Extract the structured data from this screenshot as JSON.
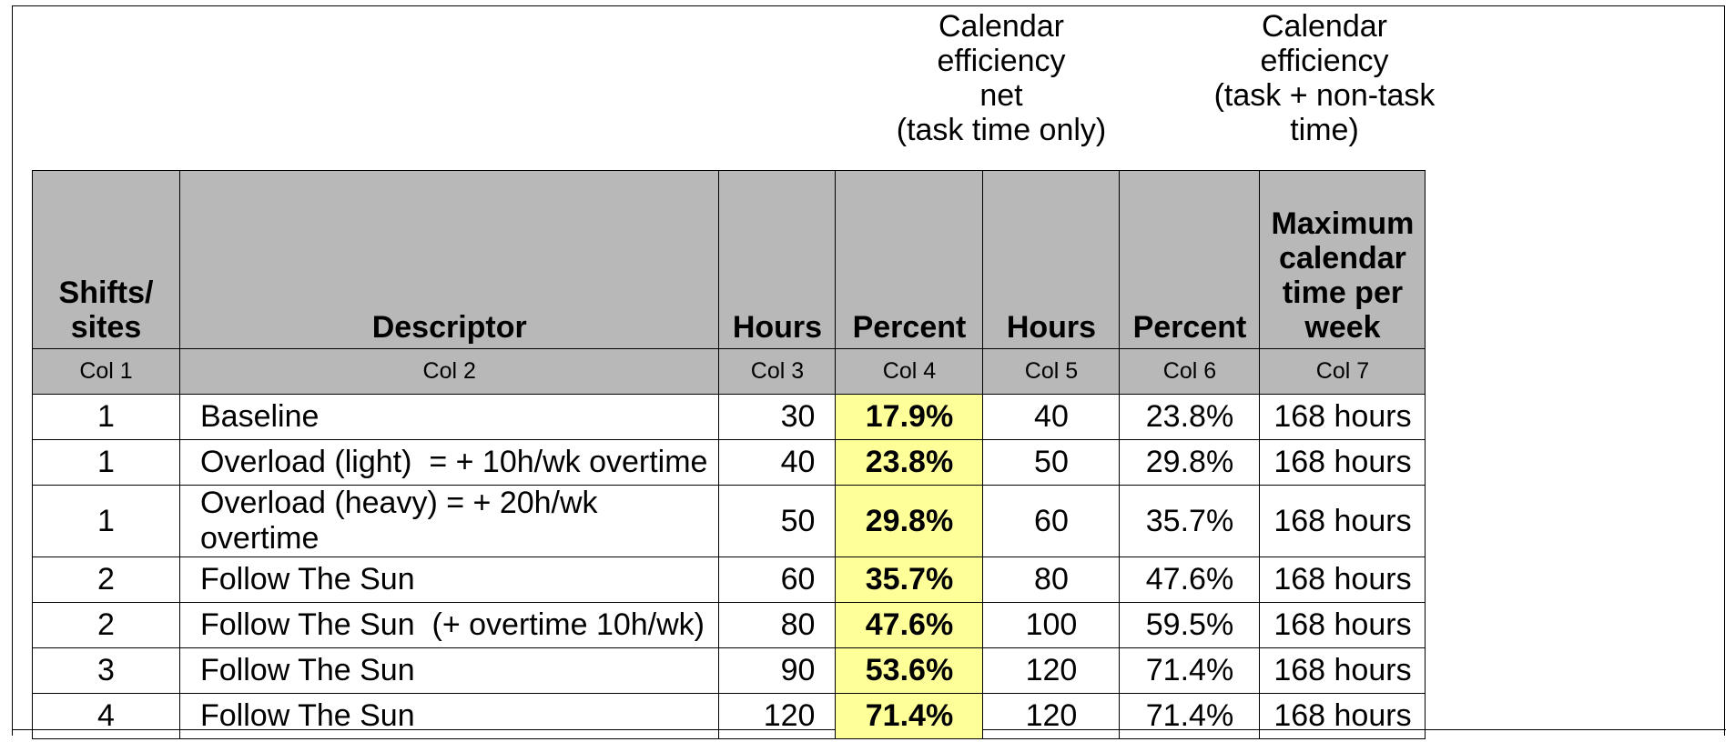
{
  "group_headers": {
    "net": [
      "Calendar",
      "efficiency",
      "net",
      "(task time only)"
    ],
    "gross": [
      "Calendar",
      "efficiency",
      "(task + non-task",
      "time)"
    ]
  },
  "columns": {
    "shifts": [
      "Shifts/",
      "sites"
    ],
    "descriptor": "Descriptor",
    "hours_net": "Hours",
    "percent_net": "Percent",
    "hours_gross": "Hours",
    "percent_gross": "Percent",
    "max": [
      "Maximum",
      "calendar",
      "time per",
      "week"
    ]
  },
  "col_numbers": [
    "Col 1",
    "Col 2",
    "Col 3",
    "Col 4",
    "Col 5",
    "Col 6",
    "Col 7"
  ],
  "rows": [
    {
      "shifts": "1",
      "descriptor": "Baseline",
      "hours_net": "30",
      "percent_net": "17.9%",
      "hours_gross": "40",
      "percent_gross": "23.8%",
      "max": "168 hours"
    },
    {
      "shifts": "1",
      "descriptor": "Overload (light)  = + 10h/wk overtime",
      "hours_net": "40",
      "percent_net": "23.8%",
      "hours_gross": "50",
      "percent_gross": "29.8%",
      "max": "168 hours"
    },
    {
      "shifts": "1",
      "descriptor": "Overload (heavy) = + 20h/wk overtime",
      "hours_net": "50",
      "percent_net": "29.8%",
      "hours_gross": "60",
      "percent_gross": "35.7%",
      "max": "168 hours"
    },
    {
      "shifts": "2",
      "descriptor": "Follow The Sun",
      "hours_net": "60",
      "percent_net": "35.7%",
      "hours_gross": "80",
      "percent_gross": "47.6%",
      "max": "168 hours"
    },
    {
      "shifts": "2",
      "descriptor": "Follow The Sun  (+ overtime 10h/wk)",
      "hours_net": "80",
      "percent_net": "47.6%",
      "hours_gross": "100",
      "percent_gross": "59.5%",
      "max": "168 hours"
    },
    {
      "shifts": "3",
      "descriptor": "Follow The Sun",
      "hours_net": "90",
      "percent_net": "53.6%",
      "hours_gross": "120",
      "percent_gross": "71.4%",
      "max": "168 hours"
    },
    {
      "shifts": "4",
      "descriptor": "Follow The Sun",
      "hours_net": "120",
      "percent_net": "71.4%",
      "hours_gross": "120",
      "percent_gross": "71.4%",
      "max": "168 hours"
    }
  ],
  "colors": {
    "header_bg": "#b8b8b8",
    "highlight": "#ffff99"
  }
}
